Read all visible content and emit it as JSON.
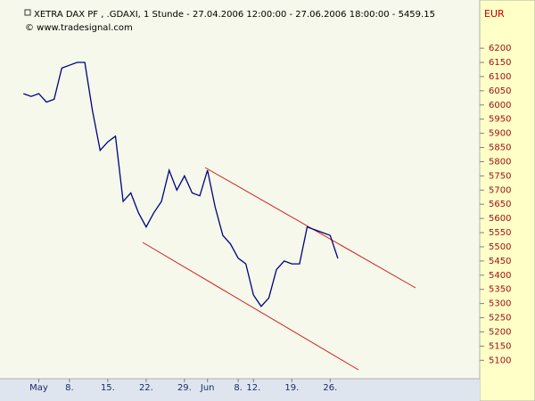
{
  "chart_data": {
    "type": "line",
    "title": "XETRA DAX PF    , .GDAXI, 1 Stunde - 27.04.2006 12:00:00 - 27.06.2006 18:00:00 - 5459.15",
    "subtitle": "© www.tradesignal.com",
    "currency": "EUR",
    "x": [
      "2006-04-27",
      "2006-04-28",
      "2006-05-02",
      "2006-05-03",
      "2006-05-04",
      "2006-05-05",
      "2006-05-08",
      "2006-05-09",
      "2006-05-10",
      "2006-05-11",
      "2006-05-12",
      "2006-05-15",
      "2006-05-16",
      "2006-05-17",
      "2006-05-18",
      "2006-05-19",
      "2006-05-22",
      "2006-05-23",
      "2006-05-24",
      "2006-05-25",
      "2006-05-26",
      "2006-05-29",
      "2006-05-30",
      "2006-05-31",
      "2006-06-01",
      "2006-06-02",
      "2006-06-06",
      "2006-06-07",
      "2006-06-08",
      "2006-06-09",
      "2006-06-12",
      "2006-06-13",
      "2006-06-14",
      "2006-06-15",
      "2006-06-16",
      "2006-06-19",
      "2006-06-20",
      "2006-06-21",
      "2006-06-22",
      "2006-06-23",
      "2006-06-26",
      "2006-06-27"
    ],
    "series": [
      {
        "color": "#000080",
        "values": [
          6040,
          6030,
          6040,
          6010,
          6020,
          6130,
          6140,
          6150,
          6150,
          5980,
          5840,
          5870,
          5890,
          5660,
          5690,
          5620,
          5570,
          5620,
          5660,
          5770,
          5700,
          5750,
          5690,
          5680,
          5770,
          5640,
          5540,
          5510,
          5460,
          5440,
          5330,
          5290,
          5320,
          5420,
          5450,
          5440,
          5440,
          5570,
          5560,
          5550,
          5540,
          5459.15
        ]
      }
    ],
    "ylim": [
      5035,
      6370
    ],
    "yticks": [
      5100,
      5150,
      5200,
      5250,
      5300,
      5350,
      5400,
      5450,
      5500,
      5550,
      5600,
      5650,
      5700,
      5750,
      5800,
      5850,
      5900,
      5950,
      6000,
      6050,
      6100,
      6150,
      6200
    ],
    "xticks": [
      {
        "value": "2006-05-02",
        "label": "May"
      },
      {
        "value": "2006-05-08",
        "label": "8."
      },
      {
        "value": "2006-05-15",
        "label": "15."
      },
      {
        "value": "2006-05-22",
        "label": "22."
      },
      {
        "value": "2006-05-29",
        "label": "29."
      },
      {
        "value": "2006-06-01",
        "label": "Jun"
      },
      {
        "value": "2006-06-08",
        "label": "8."
      },
      {
        "value": "2006-06-12",
        "label": "12."
      },
      {
        "value": "2006-06-19",
        "label": "19."
      },
      {
        "value": "2006-06-26",
        "label": "26."
      }
    ]
  }
}
